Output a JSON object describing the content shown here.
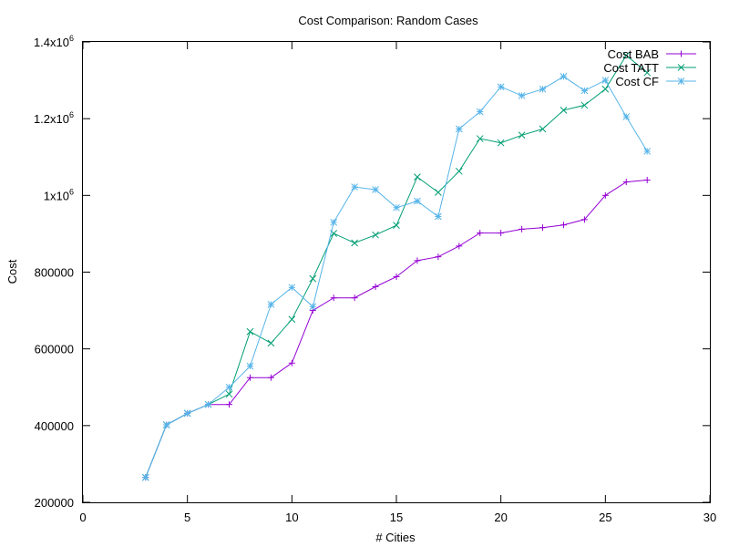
{
  "chart_data": {
    "type": "line",
    "title": "Cost Comparison: Random Cases",
    "xlabel": "# Cities",
    "ylabel": "Cost",
    "xlim": [
      0,
      30
    ],
    "ylim": [
      200000,
      1400000
    ],
    "xticks": [
      0,
      5,
      10,
      15,
      20,
      25,
      30
    ],
    "xtick_labels": [
      "0",
      "5",
      "10",
      "15",
      "20",
      "25",
      "30"
    ],
    "yticks": [
      200000,
      400000,
      600000,
      800000,
      1000000,
      1200000,
      1400000
    ],
    "ytick_labels": [
      {
        "base": "200000",
        "exp": ""
      },
      {
        "base": "400000",
        "exp": ""
      },
      {
        "base": "600000",
        "exp": ""
      },
      {
        "base": "800000",
        "exp": ""
      },
      {
        "base": "1x10",
        "exp": "6"
      },
      {
        "base": "1.2x10",
        "exp": "6"
      },
      {
        "base": "1.4x10",
        "exp": "6"
      }
    ],
    "grid": false,
    "legend_position": "top-right",
    "x": [
      3,
      4,
      5,
      6,
      7,
      8,
      9,
      10,
      11,
      12,
      13,
      14,
      15,
      16,
      17,
      18,
      19,
      20,
      21,
      22,
      23,
      24,
      25,
      26,
      27
    ],
    "series": [
      {
        "name": "Cost BAB",
        "color": "#9400d3",
        "marker": "plus",
        "values": [
          265000,
          402000,
          432000,
          455000,
          455000,
          525000,
          525000,
          563000,
          700000,
          733000,
          733000,
          762000,
          788000,
          830000,
          840000,
          868000,
          902000,
          902000,
          912000,
          916000,
          923000,
          937000,
          1000000,
          1035000,
          1040000
        ]
      },
      {
        "name": "Cost TATT",
        "color": "#009e73",
        "marker": "cross",
        "values": [
          265000,
          402000,
          432000,
          455000,
          482000,
          645000,
          615000,
          677000,
          783000,
          901000,
          876000,
          897000,
          922000,
          1048000,
          1008000,
          1063000,
          1148000,
          1137000,
          1157000,
          1173000,
          1222000,
          1235000,
          1277000,
          1365000,
          1320000
        ]
      },
      {
        "name": "Cost CF",
        "color": "#56b4e9",
        "marker": "star",
        "values": [
          265000,
          402000,
          432000,
          455000,
          500000,
          555000,
          716000,
          760000,
          710000,
          930000,
          1022000,
          1015000,
          968000,
          985000,
          945000,
          1173000,
          1218000,
          1283000,
          1260000,
          1277000,
          1310000,
          1273000,
          1300000,
          1205000,
          1115000
        ]
      }
    ]
  }
}
